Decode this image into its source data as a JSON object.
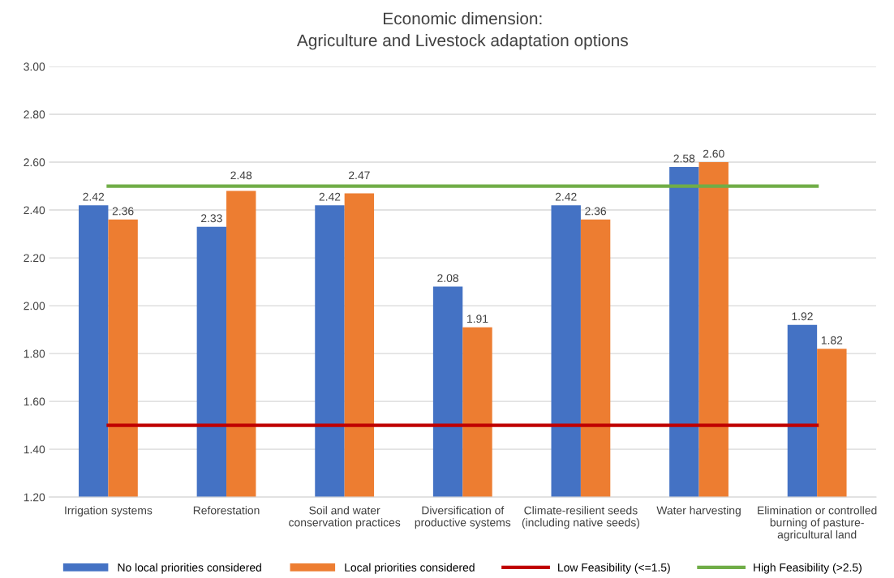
{
  "chart_data": {
    "type": "bar",
    "title": "Economic dimension:\nAgriculture and Livestock adaptation options",
    "categories": [
      "Irrigation systems",
      "Reforestation",
      "Soil and water\nconservation practices",
      "Diversification of\nproductive systems",
      "Climate-resilient seeds\n(including native seeds)",
      "Water harvesting",
      "Elimination or controlled\nburning of pasture-\nagricultural land"
    ],
    "series": [
      {
        "name": "No local priorities considered",
        "color": "#4472c4",
        "values": [
          2.42,
          2.33,
          2.42,
          2.08,
          2.42,
          2.58,
          1.92
        ],
        "value_labels": [
          "2.42",
          "2.33",
          "2.42",
          "2.08",
          "2.42",
          "2.58",
          "1.92"
        ]
      },
      {
        "name": "Local priorities considered",
        "color": "#ed7d31",
        "values": [
          2.36,
          2.48,
          2.47,
          1.91,
          2.36,
          2.6,
          1.82
        ],
        "value_labels": [
          "2.36",
          "2.48",
          "2.47",
          "1.91",
          "2.36",
          "2.60",
          "1.82"
        ]
      },
      {
        "name": "Low Feasibility (<=1.5)",
        "type": "line",
        "color": "#c00000",
        "values": [
          1.5,
          1.5,
          1.5,
          1.5,
          1.5,
          1.5,
          1.5
        ]
      },
      {
        "name": "High Feasibility (>2.5)",
        "type": "line",
        "color": "#70ad47",
        "values": [
          2.5,
          2.5,
          2.5,
          2.5,
          2.5,
          2.5,
          2.5
        ]
      }
    ],
    "ylim": [
      1.2,
      3.0
    ],
    "yticks": [
      {
        "value": 1.2,
        "label": "1.20"
      },
      {
        "value": 1.4,
        "label": "1.40"
      },
      {
        "value": 1.6,
        "label": "1.60"
      },
      {
        "value": 1.8,
        "label": "1.80"
      },
      {
        "value": 2.0,
        "label": "2.00"
      },
      {
        "value": 2.2,
        "label": "2.20"
      },
      {
        "value": 2.4,
        "label": "2.40"
      },
      {
        "value": 2.6,
        "label": "2.60"
      },
      {
        "value": 2.8,
        "label": "2.80"
      },
      {
        "value": 3.0,
        "label": "3.00"
      }
    ],
    "grid": "y",
    "legend": "bottom",
    "marker": "none",
    "line_style": "solid"
  }
}
